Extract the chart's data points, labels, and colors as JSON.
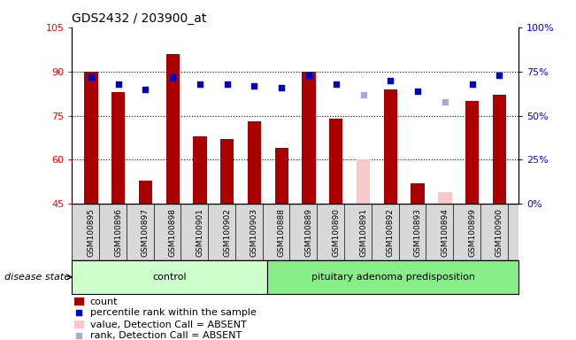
{
  "title": "GDS2432 / 203900_at",
  "samples": [
    "GSM100895",
    "GSM100896",
    "GSM100897",
    "GSM100898",
    "GSM100901",
    "GSM100902",
    "GSM100903",
    "GSM100888",
    "GSM100889",
    "GSM100890",
    "GSM100891",
    "GSM100892",
    "GSM100893",
    "GSM100894",
    "GSM100899",
    "GSM100900"
  ],
  "count_values": [
    90,
    83,
    53,
    96,
    68,
    67,
    73,
    64,
    90,
    74,
    null,
    84,
    52,
    null,
    80,
    82
  ],
  "count_absent": [
    null,
    null,
    null,
    null,
    null,
    null,
    null,
    null,
    null,
    null,
    60,
    null,
    null,
    49,
    null,
    null
  ],
  "rank_values": [
    72,
    68,
    65,
    72,
    68,
    68,
    67,
    66,
    73,
    68,
    null,
    70,
    64,
    null,
    68,
    73
  ],
  "rank_absent": [
    null,
    null,
    null,
    null,
    null,
    null,
    null,
    null,
    null,
    null,
    62,
    null,
    null,
    58,
    null,
    null
  ],
  "groups": [
    "control",
    "control",
    "control",
    "control",
    "control",
    "control",
    "control",
    "pituitary adenoma predisposition",
    "pituitary adenoma predisposition",
    "pituitary adenoma predisposition",
    "pituitary adenoma predisposition",
    "pituitary adenoma predisposition",
    "pituitary adenoma predisposition",
    "pituitary adenoma predisposition",
    "pituitary adenoma predisposition",
    "pituitary adenoma predisposition"
  ],
  "num_control": 7,
  "ylim_left": [
    45,
    105
  ],
  "ylim_right": [
    0,
    100
  ],
  "yticks_left": [
    45,
    60,
    75,
    90,
    105
  ],
  "ytick_labels_left": [
    "45",
    "60",
    "75",
    "90",
    "105"
  ],
  "yticks_right": [
    0,
    25,
    50,
    75,
    100
  ],
  "ytick_labels_right": [
    "0%",
    "25%",
    "50%",
    "75%",
    "100%"
  ],
  "bar_color_red": "#aa0000",
  "bar_color_pink": "#f9c8c8",
  "dot_color_blue": "#0000bb",
  "dot_color_lightblue": "#aaaacc",
  "control_bg": "#d8d8d8",
  "adenoma_bg": "#d8d8d8",
  "control_band_color": "#ccffcc",
  "adenoma_band_color": "#88ee88",
  "bar_width": 0.5,
  "dot_size": 22,
  "disease_state_label": "disease state",
  "control_label": "control",
  "adenoma_label": "pituitary adenoma predisposition",
  "legend_items": [
    {
      "label": "count",
      "color": "#aa0000",
      "type": "bar"
    },
    {
      "label": "percentile rank within the sample",
      "color": "#0000bb",
      "type": "dot"
    },
    {
      "label": "value, Detection Call = ABSENT",
      "color": "#f9c8c8",
      "type": "bar"
    },
    {
      "label": "rank, Detection Call = ABSENT",
      "color": "#aaaacc",
      "type": "dot"
    }
  ]
}
